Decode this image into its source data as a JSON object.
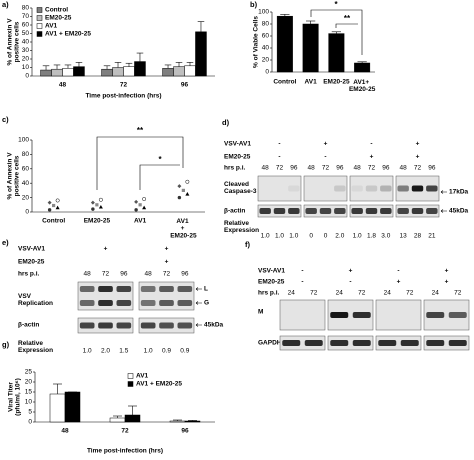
{
  "chart_data": [
    {
      "panel": "a)",
      "type": "bar",
      "ylabel": [
        "% of Annexin V",
        "positive cells"
      ],
      "xlabel": "Time post-infection (hrs)",
      "categories": [
        "48",
        "72",
        "96"
      ],
      "series": [
        {
          "name": "Control",
          "color": "#7f7f7f",
          "values": [
            7,
            8,
            9
          ],
          "errors": [
            5,
            4,
            4
          ]
        },
        {
          "name": "EM20-25",
          "color": "#bfbfbf",
          "values": [
            8,
            10,
            11
          ],
          "errors": [
            5,
            6,
            5
          ]
        },
        {
          "name": "AV1",
          "color": "#ffffff",
          "values": [
            9,
            11,
            12
          ],
          "errors": [
            4,
            4,
            4
          ]
        },
        {
          "name": "AV1 + EM20-25",
          "color": "#000000",
          "values": [
            11,
            17,
            52
          ],
          "errors": [
            5,
            10,
            12
          ]
        }
      ],
      "ylim": [
        0,
        80
      ],
      "yticks": [
        0,
        10,
        20,
        30,
        40,
        50,
        60,
        70,
        80
      ],
      "legend": "upper-left"
    },
    {
      "panel": "b)",
      "type": "bar",
      "ylabel": [
        "% of Viable Cells"
      ],
      "categories": [
        "Control",
        "AV1",
        "EM20-25",
        "AV1+ EM20-25"
      ],
      "values": [
        93,
        80,
        64,
        15
      ],
      "errors": [
        3,
        5,
        3,
        2
      ],
      "color": "#000000",
      "ylim": [
        0,
        100
      ],
      "yticks": [
        0,
        20,
        40,
        60,
        80,
        100
      ],
      "annotations": [
        "*",
        "**"
      ]
    },
    {
      "panel": "c)",
      "type": "dot",
      "ylabel": [
        "% of Annexin V",
        "positive cells"
      ],
      "categories": [
        "Control",
        "EM20-25",
        "AV1",
        "AV1 + EM20-25"
      ],
      "values": [
        [
          3,
          6,
          9,
          13,
          16
        ],
        [
          4,
          7,
          10,
          13,
          17
        ],
        [
          3,
          6,
          10,
          14,
          18
        ],
        [
          20,
          25,
          30,
          36,
          42
        ]
      ],
      "ylim": [
        0,
        100
      ],
      "yticks": [
        0,
        20,
        40,
        60,
        80,
        100
      ],
      "annotations": [
        "**",
        "*"
      ]
    },
    {
      "panel": "g)",
      "type": "bar",
      "ylabel": [
        "Viral Titer",
        "(pfu/ml, 10⁶)"
      ],
      "xlabel": "Time post-infection (hrs)",
      "categories": [
        "48",
        "72",
        "96"
      ],
      "series": [
        {
          "name": "AV1",
          "color": "#ffffff",
          "values": [
            14,
            2,
            0.5
          ],
          "errors": [
            5,
            1,
            0.5
          ]
        },
        {
          "name": "AV1 + EM20-25",
          "color": "#000000",
          "values": [
            15,
            3.5,
            0.5
          ],
          "errors": [
            0,
            4.5,
            0.3
          ]
        }
      ],
      "ylim": [
        0,
        25
      ],
      "yticks": [
        0,
        5,
        10,
        15,
        20,
        25
      ],
      "legend": "upper-right"
    }
  ],
  "blots": [
    {
      "panel": "d)",
      "conditions": [
        {
          "label": "VSV-AV1",
          "signs": [
            "-",
            "+",
            "-",
            "+"
          ]
        },
        {
          "label": "EM20-25",
          "signs": [
            "-",
            "-",
            "+",
            "+"
          ]
        }
      ],
      "time_label": "hrs p.i.",
      "times": [
        "48",
        "72",
        "96"
      ],
      "bands": [
        {
          "label": "Cleaved Caspase-3",
          "markers": [
            "17kDa"
          ]
        },
        {
          "label": "β-actin",
          "markers": [
            "45kDa"
          ]
        }
      ],
      "expression_label": "Relative Expression",
      "relative_expression": [
        [
          "1.0",
          "1.0",
          "1.0"
        ],
        [
          "0",
          "0",
          "2.0"
        ],
        [
          "1.0",
          "1.8",
          "3.0"
        ],
        [
          "13",
          "28",
          "21"
        ]
      ]
    },
    {
      "panel": "e)",
      "conditions": [
        {
          "label": "VSV-AV1",
          "signs": [
            "+",
            "+"
          ]
        },
        {
          "label": "EM20-25",
          "signs": [
            null,
            "+"
          ]
        }
      ],
      "time_label": "hrs p.i.",
      "times": [
        "48",
        "72",
        "96"
      ],
      "bands": [
        {
          "label": "VSV Replication",
          "markers": [
            "L",
            "G"
          ]
        },
        {
          "label": "β-actin",
          "markers": [
            "45kDa"
          ]
        }
      ],
      "expression_label": "Relative Expression",
      "relative_expression": [
        [
          "1.0",
          "2.0",
          "1.5"
        ],
        [
          "1.0",
          "0.9",
          "0.9"
        ]
      ]
    },
    {
      "panel": "f)",
      "conditions": [
        {
          "label": "VSV-AV1",
          "signs": [
            "-",
            "+",
            "-",
            "+"
          ]
        },
        {
          "label": "EM20-25",
          "signs": [
            "-",
            "-",
            "+",
            "+"
          ]
        }
      ],
      "time_label": "hrs p.i.",
      "times": [
        "24",
        "72"
      ],
      "bands": [
        {
          "label": "M"
        },
        {
          "label": "GAPDH"
        }
      ]
    }
  ]
}
